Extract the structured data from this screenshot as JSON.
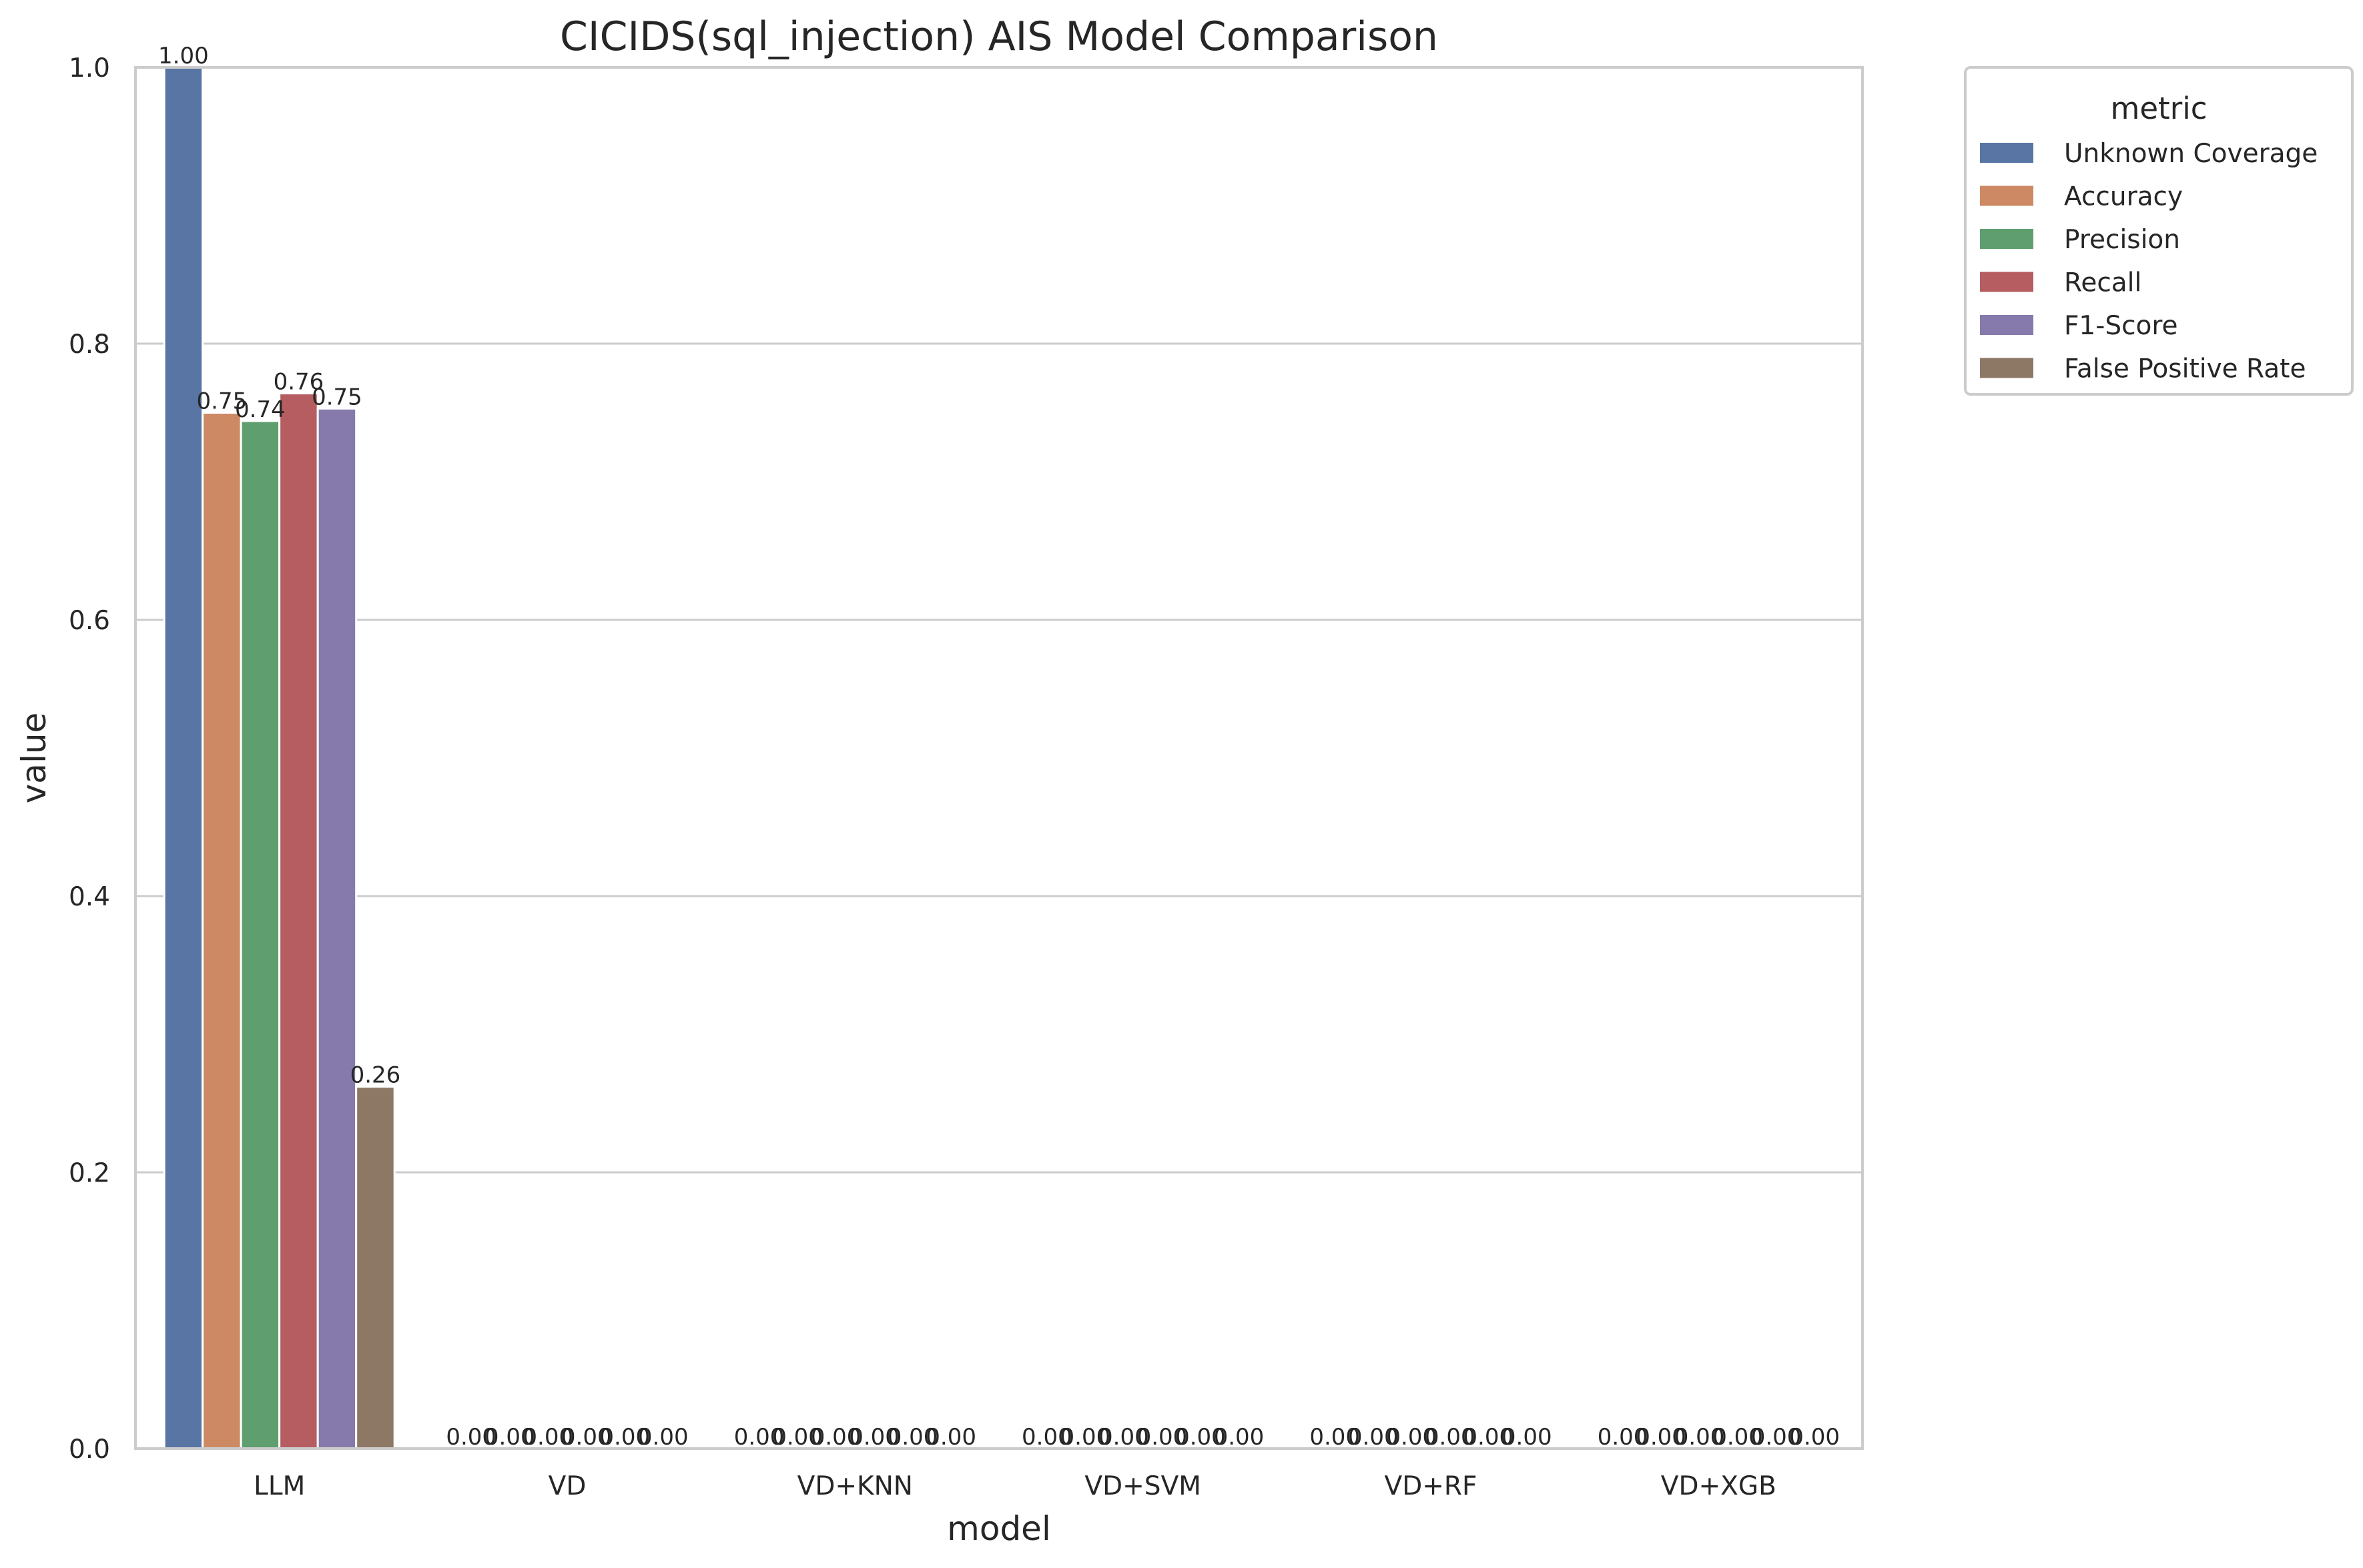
{
  "chart_data": {
    "type": "bar",
    "title": "CICIDS(sql_injection) AIS Model Comparison",
    "xlabel": "model",
    "ylabel": "value",
    "ylim": [
      0,
      1.0
    ],
    "yticks": [
      "0.0",
      "0.2",
      "0.4",
      "0.6",
      "0.8",
      "1.0"
    ],
    "grid": "horizontal",
    "legend_title": "metric",
    "legend_position": "outside-top-right",
    "categories": [
      "LLM",
      "VD",
      "VD+KNN",
      "VD+SVM",
      "VD+RF",
      "VD+XGB"
    ],
    "series": [
      {
        "name": "Unknown Coverage",
        "color": "#5875a4",
        "values": [
          1.0,
          0.0,
          0.0,
          0.0,
          0.0,
          0.0
        ],
        "labels": [
          "1.00",
          "0.00",
          "0.00",
          "0.00",
          "0.00",
          "0.00"
        ]
      },
      {
        "name": "Accuracy",
        "color": "#cc8963",
        "values": [
          0.75,
          0.0,
          0.0,
          0.0,
          0.0,
          0.0
        ],
        "labels": [
          "0.75",
          "0.00",
          "0.00",
          "0.00",
          "0.00",
          "0.00"
        ]
      },
      {
        "name": "Precision",
        "color": "#5f9e6e",
        "values": [
          0.744,
          0.0,
          0.0,
          0.0,
          0.0,
          0.0
        ],
        "labels": [
          "0.74",
          "0.00",
          "0.00",
          "0.00",
          "0.00",
          "0.00"
        ]
      },
      {
        "name": "Recall",
        "color": "#b55d60",
        "values": [
          0.764,
          0.0,
          0.0,
          0.0,
          0.0,
          0.0
        ],
        "labels": [
          "0.76",
          "0.00",
          "0.00",
          "0.00",
          "0.00",
          "0.00"
        ]
      },
      {
        "name": "F1-Score",
        "color": "#857aab",
        "values": [
          0.753,
          0.0,
          0.0,
          0.0,
          0.0,
          0.0
        ],
        "labels": [
          "0.75",
          "0.00",
          "0.00",
          "0.00",
          "0.00",
          "0.00"
        ]
      },
      {
        "name": "False Positive Rate",
        "color": "#8d7866",
        "values": [
          0.262,
          0.0,
          0.0,
          0.0,
          0.0,
          0.0
        ],
        "labels": [
          "0.26",
          "0.00",
          "0.00",
          "0.00",
          "0.00",
          "0.00"
        ]
      }
    ]
  }
}
